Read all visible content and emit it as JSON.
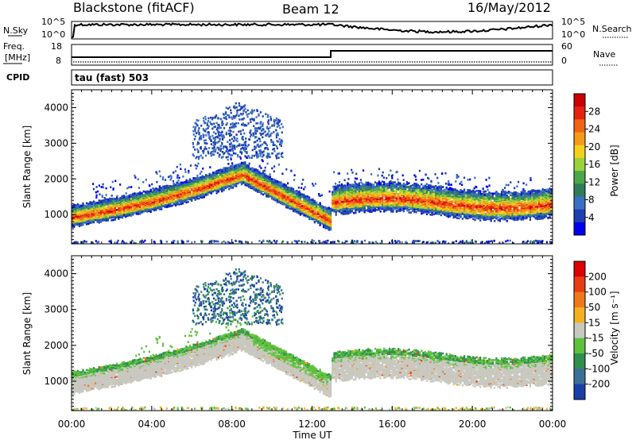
{
  "header": {
    "station": "Blackstone (fitACF)",
    "beam": "Beam 12",
    "date": "16/May/2012"
  },
  "aux_panels": {
    "nsky_label": "N.Sky",
    "nsearch_label": "N.Search",
    "nsky_ticks": [
      "10^5",
      "10^0"
    ],
    "freq_label_1": "Freq.",
    "freq_label_2": "[MHz]",
    "freq_ticks": [
      "18",
      "8"
    ],
    "nave_label": "Nave",
    "nave_ticks": [
      "60",
      "0"
    ],
    "cpid_label": "CPID",
    "cpid_value": "tau (fast) 503"
  },
  "chart_data": [
    {
      "type": "heatmap",
      "panel": "power",
      "xlabel": "",
      "ylabel": "Slant Range [km]",
      "x_ticks": [
        "00:00",
        "04:00",
        "08:00",
        "12:00",
        "16:00",
        "20:00",
        "00:00"
      ],
      "xlim_hours": [
        0,
        24
      ],
      "y_ticks": [
        1000,
        2000,
        3000,
        4000
      ],
      "ylim": [
        180,
        4500
      ],
      "colorbar": {
        "label": "Power [dB]",
        "ticks": [
          4,
          8,
          12,
          16,
          20,
          24,
          28
        ],
        "range": [
          0,
          32
        ],
        "colors": [
          "#0000ee",
          "#1c3fb0",
          "#3b6fc4",
          "#2e7d57",
          "#4aa84a",
          "#9ad23a",
          "#f2d21a",
          "#f59a16",
          "#f06414",
          "#e82212",
          "#cc0000"
        ]
      },
      "scatter_echoes": [
        {
          "time_start": 0.0,
          "time_end": 8.5,
          "range_start_km": 950,
          "range_end_km": 2150,
          "power_db": 26
        },
        {
          "time_start": 8.5,
          "time_end": 12.8,
          "range_start_km": 2150,
          "range_end_km": 900,
          "power_db": 26
        },
        {
          "time_start": 13.0,
          "time_end": 24.0,
          "range_start_km": 1350,
          "range_end_km": 1250,
          "power_db": 24
        },
        {
          "time_start": 6.5,
          "time_end": 10.0,
          "range_start_km": 3000,
          "range_end_km": 3500,
          "power_db": 8
        }
      ]
    },
    {
      "type": "heatmap",
      "panel": "velocity",
      "xlabel": "Time UT",
      "ylabel": "Slant Range [km]",
      "x_ticks": [
        "00:00",
        "04:00",
        "08:00",
        "12:00",
        "16:00",
        "20:00",
        "00:00"
      ],
      "xlim_hours": [
        0,
        24
      ],
      "y_ticks": [
        1000,
        2000,
        3000,
        4000
      ],
      "ylim": [
        180,
        4500
      ],
      "colorbar": {
        "label": "Velocity [m s⁻¹]",
        "ticks": [
          "200",
          "100",
          "50",
          "15",
          "-15",
          "-50",
          "-100",
          "-200"
        ],
        "colors": [
          "#1a3fa8",
          "#3b6f96",
          "#2e8f4e",
          "#5cc23c",
          "#c8c8c0",
          "#f5b020",
          "#f07818",
          "#ea3c12",
          "#dd0000"
        ]
      }
    }
  ]
}
